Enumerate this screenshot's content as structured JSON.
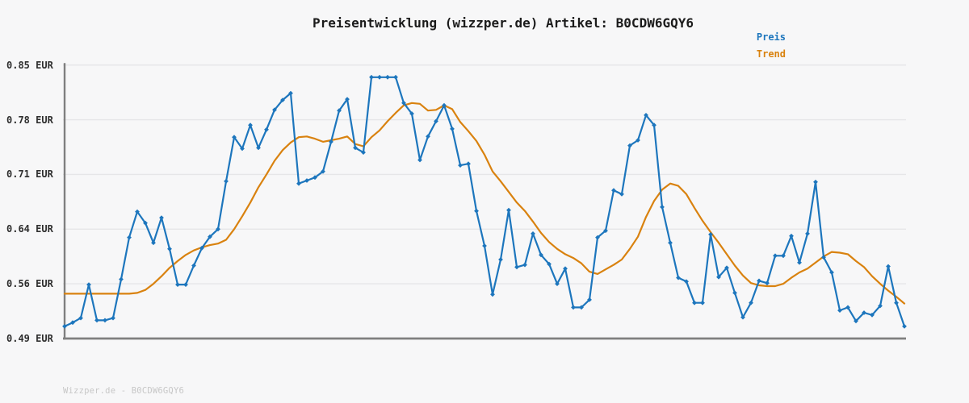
{
  "header": {
    "title": "Preisentwicklung (wizzper.de) Artikel: B0CDW6GQY6"
  },
  "legend": {
    "items": [
      {
        "label": "Preis",
        "color": "#1d76bd"
      },
      {
        "label": "Trend",
        "color": "#d9820f"
      }
    ]
  },
  "watermark": {
    "text": "Wizzper.de - B0CDW6GQY6"
  },
  "colors": {
    "background": "#f7f7f8",
    "grid": "#e6e6e8",
    "axis": "#7f7f7f",
    "price": "#1d76bd",
    "trend": "#d9820f"
  },
  "chart_data": {
    "type": "line",
    "title": "Preisentwicklung (wizzper.de) Artikel: B0CDW6GQY6",
    "xlabel": "",
    "ylabel": "EUR",
    "ylim": [
      0.49,
      0.85
    ],
    "grid": "horizontal",
    "legend_position": "top-right",
    "x_tick_labels": [],
    "y_ticks": [
      {
        "value": 0.85,
        "label": "0.85 EUR"
      },
      {
        "value": 0.78,
        "label": "0.78 EUR"
      },
      {
        "value": 0.71,
        "label": "0.71 EUR"
      },
      {
        "value": 0.64,
        "label": "0.64 EUR"
      },
      {
        "value": 0.56,
        "label": "0.56 EUR"
      },
      {
        "value": 0.49,
        "label": "0.49 EUR"
      }
    ],
    "series": [
      {
        "name": "Preis",
        "color": "#1d76bd",
        "marker": "diamond",
        "values": [
          0.506,
          0.511,
          0.517,
          0.561,
          0.514,
          0.514,
          0.517,
          0.568,
          0.623,
          0.657,
          0.642,
          0.616,
          0.649,
          0.608,
          0.561,
          0.561,
          0.586,
          0.609,
          0.624,
          0.634,
          0.697,
          0.755,
          0.74,
          0.771,
          0.741,
          0.765,
          0.791,
          0.804,
          0.813,
          0.694,
          0.698,
          0.702,
          0.71,
          0.749,
          0.79,
          0.805,
          0.741,
          0.735,
          0.834,
          0.834,
          0.834,
          0.834,
          0.8,
          0.786,
          0.725,
          0.756,
          0.776,
          0.797,
          0.766,
          0.718,
          0.72,
          0.658,
          0.612,
          0.548,
          0.594,
          0.659,
          0.584,
          0.587,
          0.628,
          0.6,
          0.588,
          0.562,
          0.582,
          0.531,
          0.531,
          0.541,
          0.623,
          0.632,
          0.685,
          0.68,
          0.744,
          0.751,
          0.784,
          0.771,
          0.663,
          0.616,
          0.57,
          0.565,
          0.537,
          0.537,
          0.627,
          0.571,
          0.583,
          0.55,
          0.518,
          0.537,
          0.566,
          0.563,
          0.599,
          0.599,
          0.625,
          0.59,
          0.628,
          0.696,
          0.597,
          0.577,
          0.527,
          0.531,
          0.513,
          0.524,
          0.521,
          0.533,
          0.585,
          0.537,
          0.506
        ]
      },
      {
        "name": "Trend",
        "color": "#d9820f",
        "marker": "none",
        "values": [
          0.549,
          0.549,
          0.549,
          0.549,
          0.549,
          0.549,
          0.549,
          0.549,
          0.549,
          0.55,
          0.554,
          0.562,
          0.572,
          0.583,
          0.592,
          0.6,
          0.606,
          0.61,
          0.613,
          0.615,
          0.62,
          0.634,
          0.651,
          0.669,
          0.689,
          0.706,
          0.724,
          0.738,
          0.748,
          0.755,
          0.756,
          0.753,
          0.749,
          0.751,
          0.753,
          0.756,
          0.746,
          0.743,
          0.755,
          0.764,
          0.776,
          0.787,
          0.797,
          0.8,
          0.799,
          0.79,
          0.791,
          0.797,
          0.792,
          0.775,
          0.763,
          0.75,
          0.732,
          0.71,
          0.697,
          0.683,
          0.669,
          0.658,
          0.644,
          0.629,
          0.617,
          0.608,
          0.601,
          0.596,
          0.589,
          0.578,
          0.575,
          0.581,
          0.587,
          0.594,
          0.608,
          0.624,
          0.65,
          0.671,
          0.686,
          0.694,
          0.691,
          0.68,
          0.662,
          0.645,
          0.63,
          0.616,
          0.601,
          0.586,
          0.573,
          0.563,
          0.56,
          0.559,
          0.559,
          0.562,
          0.57,
          0.577,
          0.582,
          0.59,
          0.598,
          0.604,
          0.603,
          0.601,
          0.592,
          0.584,
          0.572,
          0.562,
          0.553,
          0.545,
          0.536
        ]
      }
    ]
  }
}
